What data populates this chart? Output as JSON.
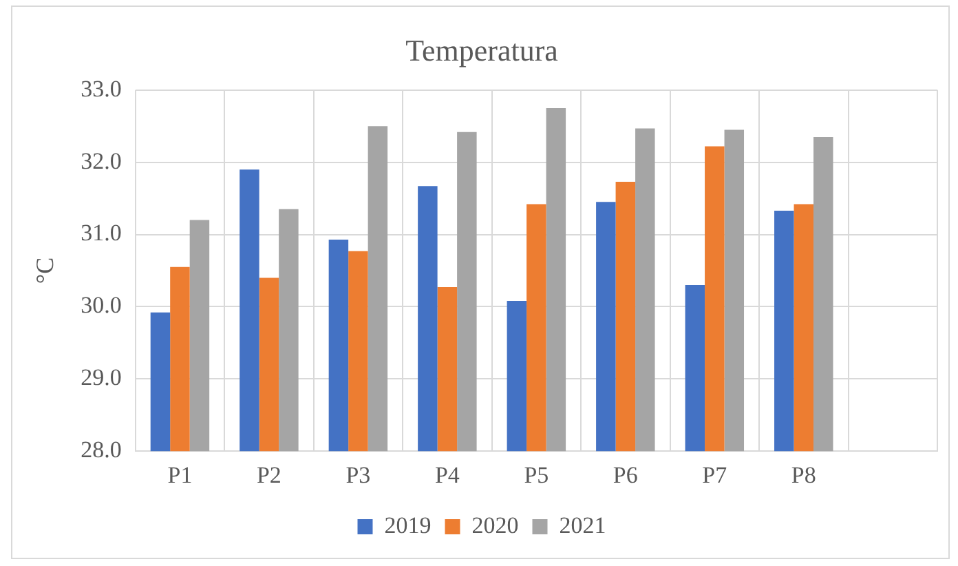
{
  "chart_data": {
    "type": "bar",
    "title": "Temperatura",
    "ylabel": "°C",
    "categories": [
      "P1",
      "P2",
      "P3",
      "P4",
      "P5",
      "P6",
      "P7",
      "P8",
      null
    ],
    "series": [
      {
        "name": "2019",
        "color": "#4472c4",
        "values": [
          29.92,
          31.9,
          30.93,
          31.67,
          30.08,
          31.45,
          30.3,
          31.33,
          null
        ]
      },
      {
        "name": "2020",
        "color": "#ed7d31",
        "values": [
          30.55,
          30.4,
          30.77,
          30.27,
          31.42,
          31.73,
          32.22,
          31.42,
          null
        ]
      },
      {
        "name": "2021",
        "color": "#a5a5a5",
        "values": [
          31.2,
          31.35,
          32.5,
          32.42,
          32.75,
          32.47,
          32.45,
          32.35,
          null
        ]
      }
    ],
    "ylim": [
      28,
      33
    ],
    "yticks": [
      {
        "value": 28,
        "label": "28.0"
      },
      {
        "value": 29,
        "label": "29.0"
      },
      {
        "value": 30,
        "label": "30.0"
      },
      {
        "value": 31,
        "label": "31.0"
      },
      {
        "value": 32,
        "label": "32.0"
      },
      {
        "value": 33,
        "label": "33.0"
      }
    ],
    "grid": true,
    "legend": "bottom"
  }
}
